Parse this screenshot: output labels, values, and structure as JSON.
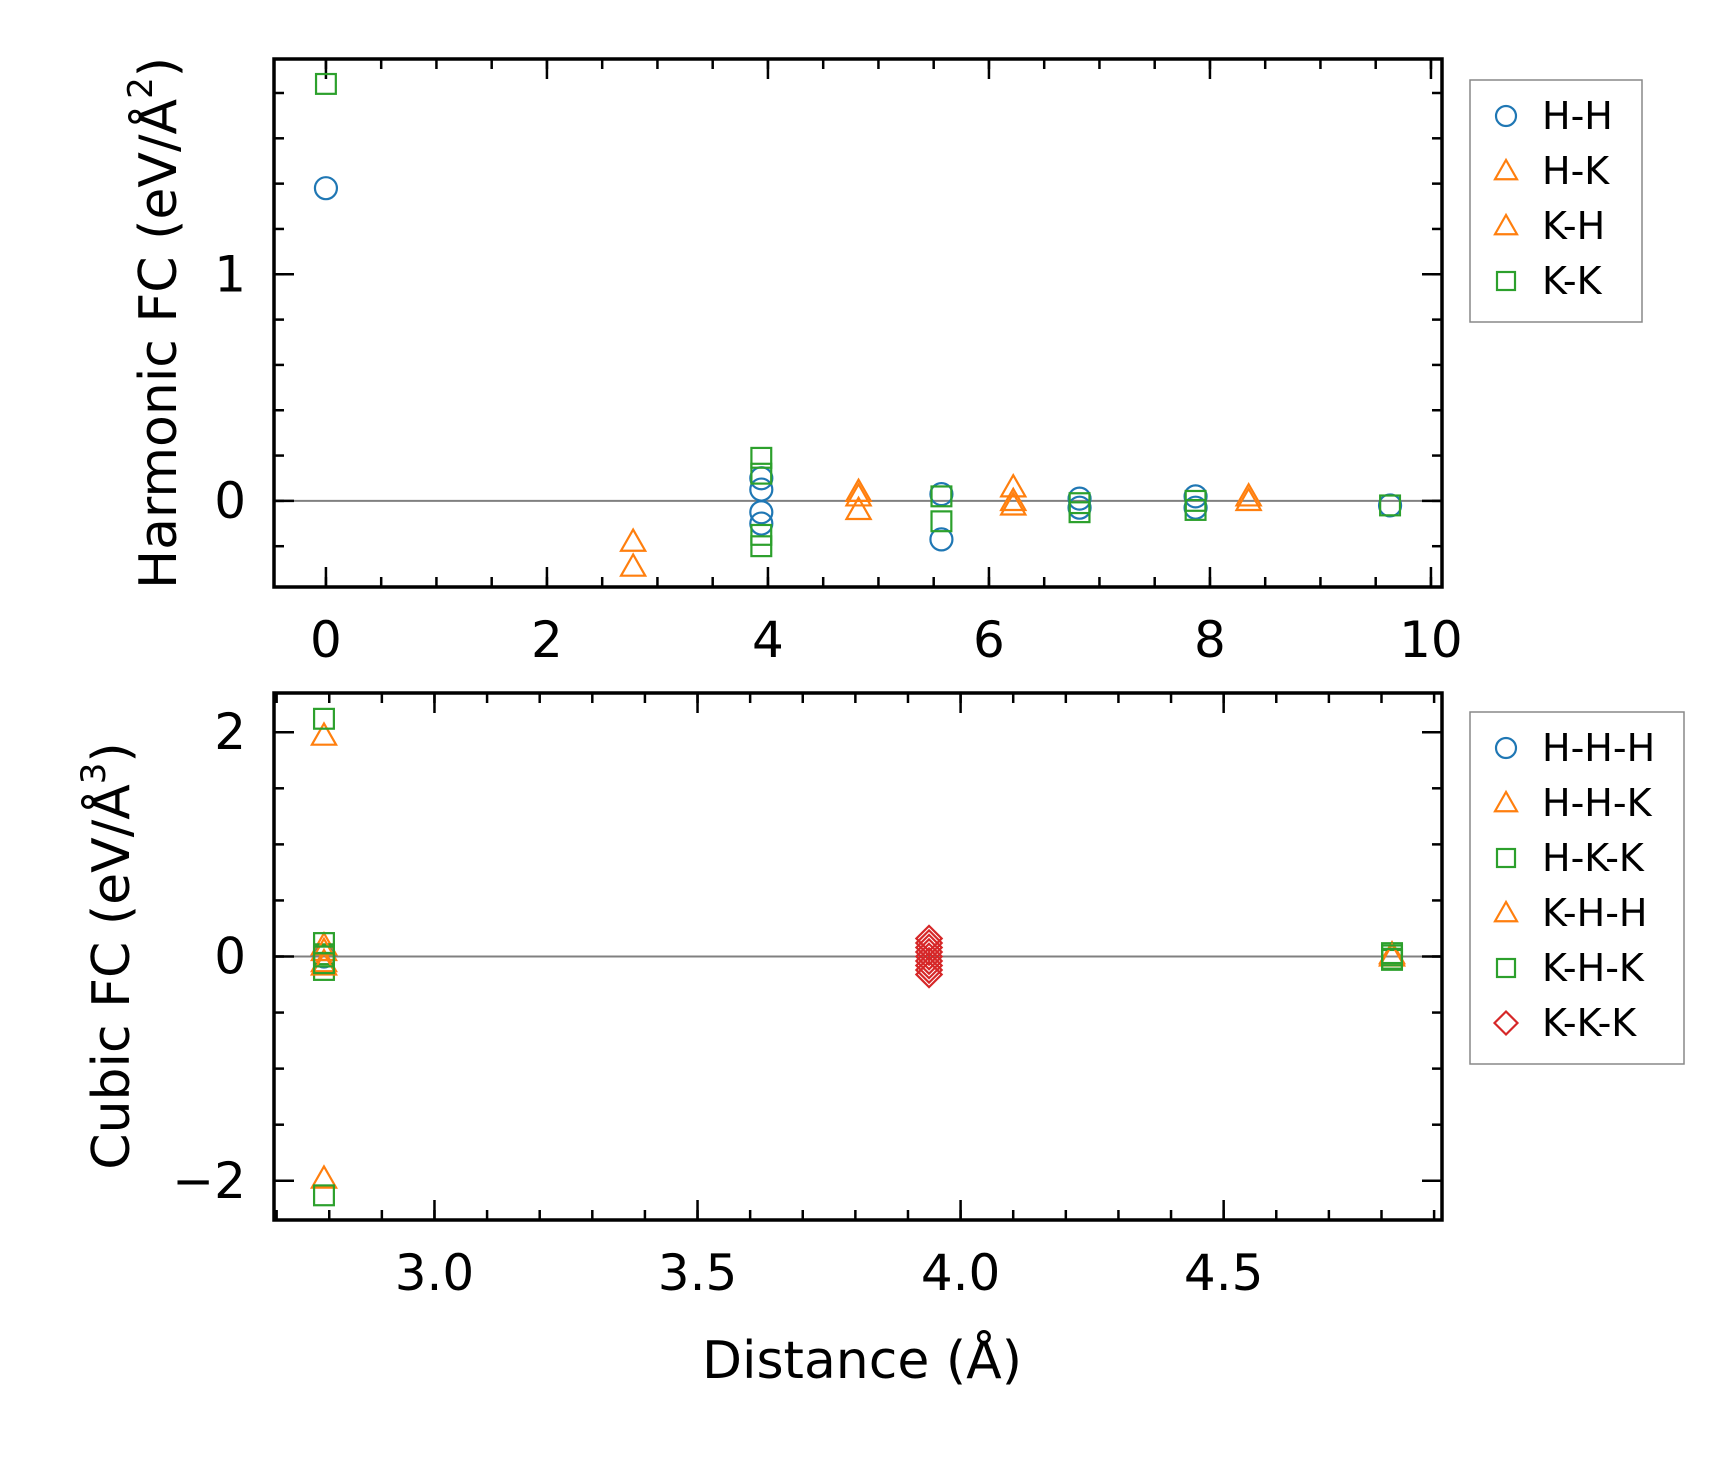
{
  "chart_data": [
    {
      "type": "scatter",
      "id": "harmonic",
      "title": "",
      "xlabel": "",
      "ylabel": "Harmonic FC (eV/Å2)",
      "ylabel_parts": {
        "main": "Harmonic FC (eV/Å",
        "sup": "2",
        "close": ")"
      },
      "xlim": [
        -0.47,
        10.1
      ],
      "ylim": [
        -0.38,
        1.95
      ],
      "xticks": [
        0,
        2,
        4,
        6,
        8,
        10
      ],
      "xtick_labels": [
        "0",
        "2",
        "4",
        "6",
        "8",
        "10"
      ],
      "xticks_minor_step": 0.5,
      "yticks": [
        0,
        1
      ],
      "ytick_labels": [
        "0",
        "1"
      ],
      "yticks_minor_step": 0.2,
      "zero_line": true,
      "legend_position": "outside-right-top",
      "series": [
        {
          "name": "H-H",
          "marker": "circle",
          "color": "#1f77b4",
          "points": [
            [
              0.0,
              1.38
            ],
            [
              3.94,
              0.1
            ],
            [
              3.94,
              0.05
            ],
            [
              3.94,
              -0.05
            ],
            [
              3.94,
              -0.1
            ],
            [
              5.57,
              0.03
            ],
            [
              5.57,
              -0.17
            ],
            [
              6.82,
              0.01
            ],
            [
              6.82,
              -0.03
            ],
            [
              7.87,
              0.02
            ],
            [
              7.87,
              -0.03
            ],
            [
              9.63,
              -0.02
            ]
          ]
        },
        {
          "name": "H-K",
          "marker": "triangle",
          "color": "#ff7f0e",
          "points": [
            [
              2.78,
              -0.18
            ],
            [
              2.78,
              -0.29
            ],
            [
              4.82,
              0.04
            ],
            [
              4.82,
              -0.04
            ],
            [
              6.22,
              0.06
            ],
            [
              6.22,
              -0.02
            ],
            [
              8.35,
              0.02
            ]
          ]
        },
        {
          "name": "K-H",
          "marker": "triangle",
          "color": "#ff7f0e",
          "points": [
            [
              4.82,
              0.02
            ],
            [
              6.22,
              0.0
            ],
            [
              8.35,
              0.0
            ]
          ]
        },
        {
          "name": "K-K",
          "marker": "square",
          "color": "#2ca02c",
          "points": [
            [
              0.0,
              1.84
            ],
            [
              3.94,
              0.19
            ],
            [
              3.94,
              0.12
            ],
            [
              3.94,
              -0.15
            ],
            [
              3.94,
              -0.2
            ],
            [
              5.57,
              0.02
            ],
            [
              5.57,
              -0.09
            ],
            [
              6.82,
              -0.01
            ],
            [
              6.82,
              -0.05
            ],
            [
              7.87,
              0.0
            ],
            [
              7.87,
              -0.04
            ],
            [
              9.63,
              -0.02
            ]
          ]
        }
      ]
    },
    {
      "type": "scatter",
      "id": "cubic",
      "title": "",
      "xlabel": "Distance (Å)",
      "ylabel": "Cubic FC (eV/Å3)",
      "ylabel_parts": {
        "main": "Cubic FC (eV/Å",
        "sup": "3",
        "close": ")"
      },
      "xlim": [
        2.695,
        4.915
      ],
      "ylim": [
        -2.35,
        2.35
      ],
      "xticks": [
        3.0,
        3.5,
        4.0,
        4.5
      ],
      "xtick_labels": [
        "3.0",
        "3.5",
        "4.0",
        "4.5"
      ],
      "xticks_minor_step": 0.1,
      "yticks": [
        -2,
        0,
        2
      ],
      "ytick_labels": [
        "−2",
        "0",
        "2"
      ],
      "yticks_minor_step": 0.5,
      "zero_line": true,
      "legend_position": "outside-right-top",
      "series": [
        {
          "name": "H-H-H",
          "marker": "circle",
          "color": "#1f77b4",
          "points": [
            [
              2.79,
              0.0
            ]
          ]
        },
        {
          "name": "H-H-K",
          "marker": "triangle",
          "color": "#ff7f0e",
          "points": [
            [
              2.79,
              1.97
            ],
            [
              2.79,
              0.1
            ],
            [
              2.79,
              -0.05
            ],
            [
              2.79,
              -1.98
            ],
            [
              4.82,
              0.02
            ]
          ]
        },
        {
          "name": "H-K-K",
          "marker": "square",
          "color": "#2ca02c",
          "points": [
            [
              2.79,
              2.12
            ],
            [
              2.79,
              0.12
            ],
            [
              2.79,
              0.02
            ],
            [
              2.79,
              -0.12
            ],
            [
              2.79,
              -2.13
            ],
            [
              4.82,
              0.03
            ],
            [
              4.82,
              -0.03
            ]
          ]
        },
        {
          "name": "K-H-H",
          "marker": "triangle",
          "color": "#ff7f0e",
          "points": [
            [
              2.79,
              0.05
            ],
            [
              2.79,
              -0.08
            ],
            [
              4.82,
              0.0
            ]
          ]
        },
        {
          "name": "K-H-K",
          "marker": "square",
          "color": "#2ca02c",
          "points": [
            [
              2.79,
              0.0
            ],
            [
              2.79,
              -0.06
            ],
            [
              4.82,
              0.01
            ],
            [
              4.82,
              -0.02
            ]
          ]
        },
        {
          "name": "K-K-K",
          "marker": "diamond",
          "color": "#d62728",
          "points": [
            [
              3.94,
              0.16
            ],
            [
              3.94,
              0.12
            ],
            [
              3.94,
              0.08
            ],
            [
              3.94,
              0.04
            ],
            [
              3.94,
              0.0
            ],
            [
              3.94,
              -0.04
            ],
            [
              3.94,
              -0.08
            ],
            [
              3.94,
              -0.12
            ],
            [
              3.94,
              -0.16
            ]
          ]
        }
      ]
    }
  ]
}
